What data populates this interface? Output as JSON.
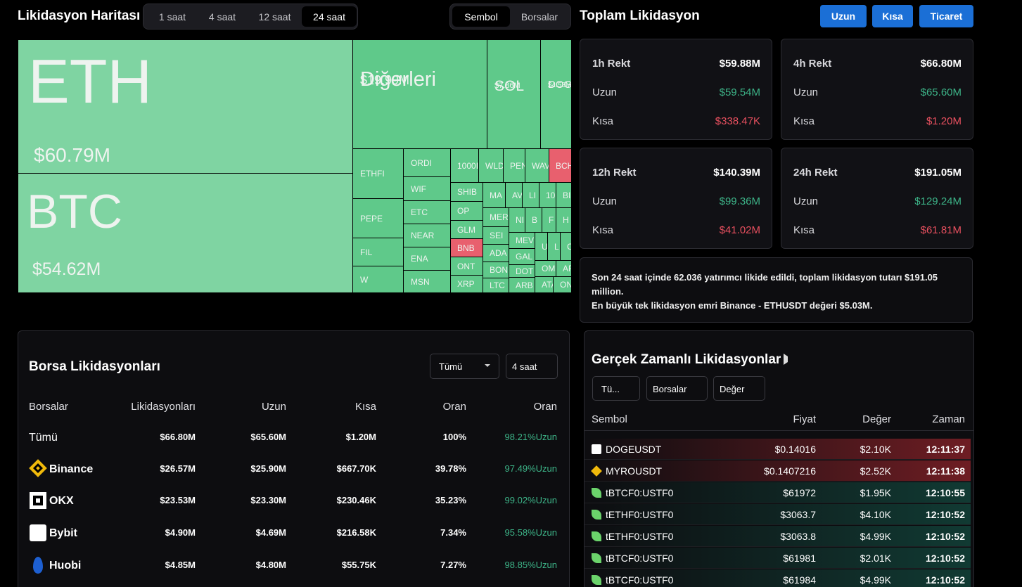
{
  "header": {
    "title": "Likidasyon Haritası",
    "time_tabs": [
      "1 saat",
      "4 saat",
      "12 saat",
      "24 saat"
    ],
    "active_time_tab": 3,
    "view_tabs": [
      "Sembol",
      "Borsalar"
    ],
    "active_view_tab": 0
  },
  "treemap": {
    "cells": [
      {
        "label": "ETH",
        "value": "$60.79M",
        "color": "#7fd4a2"
      },
      {
        "label": "BTC",
        "value": "$54.62M",
        "color": "#7fd4a2"
      },
      {
        "label": "Diğerleri",
        "value": "$19.99M",
        "color": "#5fc98a"
      },
      {
        "label": "SOL",
        "value": "$7.86M",
        "color": "#5fc98a"
      },
      {
        "label": "DOG",
        "value": "$4.58M",
        "color": "#5fc98a"
      },
      {
        "label": "ETHFI",
        "color": "#5fc98a"
      },
      {
        "label": "PEPE",
        "color": "#5fc98a"
      },
      {
        "label": "FIL",
        "color": "#5fc98a"
      },
      {
        "label": "W",
        "color": "#5fc98a"
      },
      {
        "label": "ORDI",
        "color": "#5fc98a"
      },
      {
        "label": "WIF",
        "color": "#5fc98a"
      },
      {
        "label": "ETC",
        "color": "#5fc98a"
      },
      {
        "label": "NEAR",
        "color": "#5fc98a"
      },
      {
        "label": "ENA",
        "color": "#5fc98a"
      },
      {
        "label": "MSN",
        "color": "#5fc98a"
      },
      {
        "label": "1000I",
        "color": "#5fc98a"
      },
      {
        "label": "WLD",
        "color": "#5fc98a"
      },
      {
        "label": "PEN",
        "color": "#5fc98a"
      },
      {
        "label": "WAV",
        "color": "#5fc98a"
      },
      {
        "label": "BCH",
        "color": "#e8606e"
      },
      {
        "label": "SHIB",
        "color": "#5fc98a"
      },
      {
        "label": "OP",
        "color": "#5fc98a"
      },
      {
        "label": "GLM",
        "color": "#5fc98a"
      },
      {
        "label": "BNB",
        "color": "#e8606e"
      },
      {
        "label": "ONT",
        "color": "#5fc98a"
      },
      {
        "label": "XRP",
        "color": "#5fc98a"
      },
      {
        "label": "MA",
        "color": "#5fc98a"
      },
      {
        "label": "AV",
        "color": "#5fc98a"
      },
      {
        "label": "LI",
        "color": "#5fc98a"
      },
      {
        "label": "10",
        "color": "#5fc98a"
      },
      {
        "label": "BI",
        "color": "#5fc98a"
      },
      {
        "label": "MER",
        "color": "#5fc98a"
      },
      {
        "label": "NI",
        "color": "#5fc98a"
      },
      {
        "label": "B",
        "color": "#5fc98a"
      },
      {
        "label": "F",
        "color": "#5fc98a"
      },
      {
        "label": "H",
        "color": "#5fc98a"
      },
      {
        "label": "SEI",
        "color": "#5fc98a"
      },
      {
        "label": "ADA",
        "color": "#5fc98a"
      },
      {
        "label": "BON",
        "color": "#5fc98a"
      },
      {
        "label": "LTC",
        "color": "#5fc98a"
      },
      {
        "label": "MEV",
        "color": "#5fc98a"
      },
      {
        "label": "GAL",
        "color": "#5fc98a"
      },
      {
        "label": "DOT",
        "color": "#5fc98a"
      },
      {
        "label": "ARB",
        "color": "#5fc98a"
      },
      {
        "label": "U",
        "color": "#5fc98a"
      },
      {
        "label": "L",
        "color": "#5fc98a"
      },
      {
        "label": "C",
        "color": "#5fc98a"
      },
      {
        "label": "OM",
        "color": "#5fc98a"
      },
      {
        "label": "AP",
        "color": "#5fc98a"
      },
      {
        "label": "ATA",
        "color": "#5fc98a"
      },
      {
        "label": "ON",
        "color": "#5fc98a"
      }
    ]
  },
  "summary": {
    "title": "Toplam Likidasyon",
    "buttons": [
      "Uzun",
      "Kısa",
      "Ticaret"
    ],
    "cards": [
      {
        "title": "1h Rekt",
        "total": "$59.88M",
        "rows": [
          {
            "label": "Uzun",
            "value": "$59.54M"
          },
          {
            "label": "Kısa",
            "value": "$338.47K"
          }
        ]
      },
      {
        "title": "4h Rekt",
        "total": "$66.80M",
        "rows": [
          {
            "label": "Uzun",
            "value": "$65.60M"
          },
          {
            "label": "Kısa",
            "value": "$1.20M"
          }
        ]
      },
      {
        "title": "12h Rekt",
        "total": "$140.39M",
        "rows": [
          {
            "label": "Uzun",
            "value": "$99.36M"
          },
          {
            "label": "Kısa",
            "value": "$41.02M"
          }
        ]
      },
      {
        "title": "24h Rekt",
        "total": "$191.05M",
        "rows": [
          {
            "label": "Uzun",
            "value": "$129.24M"
          },
          {
            "label": "Kısa",
            "value": "$61.81M"
          }
        ]
      }
    ],
    "notes": [
      "Son 24 saat içinde 62.036 yatırımcı likide edildi, toplam likidasyon tutarı $191.05 million.",
      "En büyük tek likidasyon emri Binance - ETHUSDT değeri $5.03M."
    ]
  },
  "exchange_table": {
    "title": "Borsa Likidasyonları",
    "filters": [
      "Tümü",
      "4 saat"
    ],
    "columns": [
      "Borsalar",
      "Likidasyonları",
      "Uzun",
      "Kısa",
      "Oran",
      "Oran"
    ],
    "rows": [
      [
        "Tümü",
        "$66.80M",
        "$65.60M",
        "$1.20M",
        "100%",
        "98.21%Uzun"
      ],
      [
        "Binance",
        "$26.57M",
        "$25.90M",
        "$667.70K",
        "39.78%",
        "97.49%Uzun"
      ],
      [
        "OKX",
        "$23.53M",
        "$23.30M",
        "$230.46K",
        "35.23%",
        "99.02%Uzun"
      ],
      [
        "Bybit",
        "$4.90M",
        "$4.69M",
        "$216.58K",
        "7.34%",
        "95.58%Uzun"
      ],
      [
        "Huobi",
        "$4.85M",
        "$4.80M",
        "$55.75K",
        "7.27%",
        "98.85%Uzun"
      ]
    ]
  },
  "realtime": {
    "title": "Gerçek Zamanlı Likidasyonlar",
    "filters": [
      "Tü...",
      "Borsalar",
      "Değer"
    ],
    "columns": [
      "Sembol",
      "Fiyat",
      "Değer",
      "Zaman"
    ],
    "rows": [
      {
        "symbol": "DOGEUSDT",
        "price": "$0.14016",
        "value": "$2.10K",
        "time": "12:11:37",
        "color": "#6e1d23"
      },
      {
        "symbol": "MYROUSDT",
        "price": "$0.1407216",
        "value": "$2.52K",
        "time": "12:11:38",
        "color": "#6e1d23"
      },
      {
        "symbol": "tBTCF0:USTF0",
        "price": "$61972",
        "value": "$1.95K",
        "time": "12:10:55",
        "color": "#113a33"
      },
      {
        "symbol": "tETHF0:USTF0",
        "price": "$3063.7",
        "value": "$4.10K",
        "time": "12:10:52",
        "color": "#113a33"
      },
      {
        "symbol": "tETHF0:USTF0",
        "price": "$3063.8",
        "value": "$4.99K",
        "time": "12:10:52",
        "color": "#113a33"
      },
      {
        "symbol": "tBTCF0:USTF0",
        "price": "$61981",
        "value": "$2.01K",
        "time": "12:10:52",
        "color": "#113a33"
      },
      {
        "symbol": "tBTCF0:USTF0",
        "price": "$61984",
        "value": "$4.99K",
        "time": "12:10:52",
        "color": "#113a33"
      }
    ]
  }
}
